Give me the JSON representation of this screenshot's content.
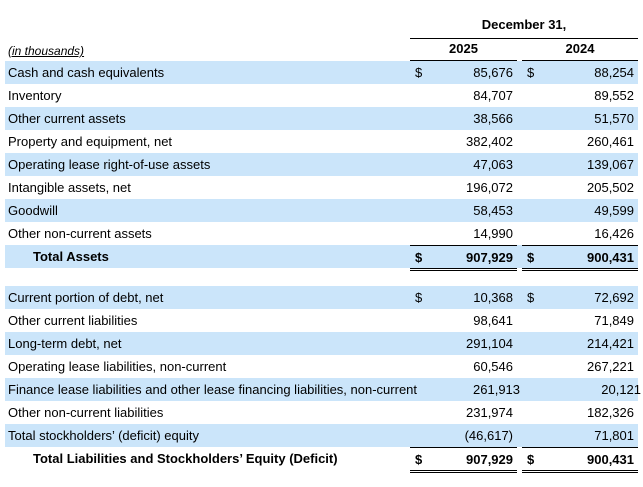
{
  "table": {
    "units_label": "(in thousands)",
    "date_header": "December 31,",
    "years": [
      "2025",
      "2024"
    ],
    "dollar_sign": "$",
    "shade_color": "#cbe5fa",
    "rows": [
      {
        "label": "Cash and cash equivalents",
        "dollar": true,
        "v1": "85,676",
        "v2": "88,254",
        "shade": true
      },
      {
        "label": "Inventory",
        "v1": "84,707",
        "v2": "89,552",
        "shade": false
      },
      {
        "label": "Other current assets",
        "v1": "38,566",
        "v2": "51,570",
        "shade": true
      },
      {
        "label": "Property and equipment, net",
        "v1": "382,402",
        "v2": "260,461",
        "shade": false
      },
      {
        "label": "Operating lease right-of-use assets",
        "v1": "47,063",
        "v2": "139,067",
        "shade": true
      },
      {
        "label": "Intangible assets, net",
        "v1": "196,072",
        "v2": "205,502",
        "shade": false
      },
      {
        "label": "Goodwill",
        "v1": "58,453",
        "v2": "49,599",
        "shade": true
      },
      {
        "label": "Other non-current assets",
        "v1": "14,990",
        "v2": "16,426",
        "shade": false
      },
      {
        "label": "Total Assets",
        "dollar": true,
        "v1": "907,929",
        "v2": "900,431",
        "shade": true,
        "total": true
      },
      {
        "rule": "double"
      },
      {
        "spacer": true
      },
      {
        "label": "Current portion of debt, net",
        "dollar": true,
        "v1": "10,368",
        "v2": "72,692",
        "shade": true
      },
      {
        "label": "Other current liabilities",
        "v1": "98,641",
        "v2": "71,849",
        "shade": false
      },
      {
        "label": "Long-term debt, net",
        "v1": "291,104",
        "v2": "214,421",
        "shade": true
      },
      {
        "label": "Operating lease liabilities, non-current",
        "v1": "60,546",
        "v2": "267,221",
        "shade": false
      },
      {
        "label": "Finance lease liabilities and other lease financing liabilities, non-current",
        "v1": "261,913",
        "v2": "20,121",
        "shade": true
      },
      {
        "label": "Other non-current liabilities",
        "v1": "231,974",
        "v2": "182,326",
        "shade": false
      },
      {
        "label": "Total stockholders’ (deficit) equity",
        "v1": "(46,617)",
        "v2": "71,801",
        "shade": true
      },
      {
        "label": "Total Liabilities and Stockholders’ Equity (Deficit)",
        "dollar": true,
        "v1": "907,929",
        "v2": "900,431",
        "shade": false,
        "total": true
      },
      {
        "rule": "double"
      }
    ]
  }
}
